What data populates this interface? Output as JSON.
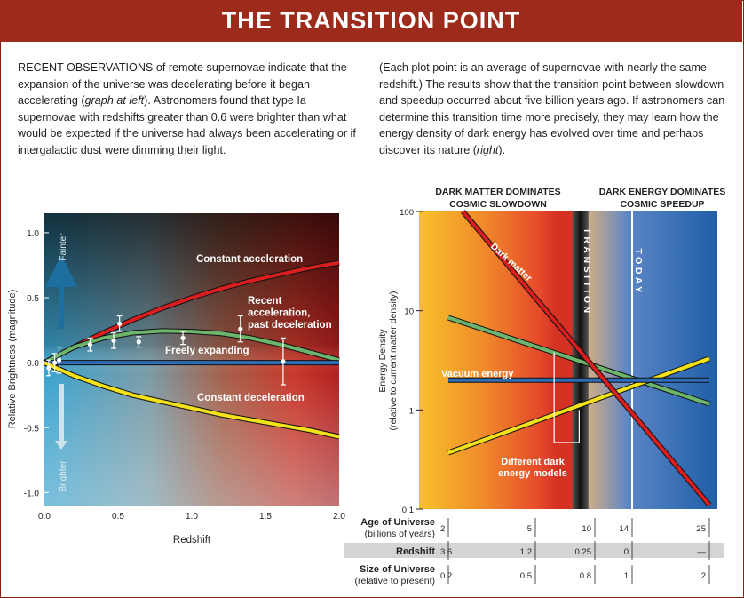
{
  "banner": {
    "title": "THE TRANSITION POINT"
  },
  "intro": {
    "left_lead": "RECENT OBSERVATIONS",
    "left_1": " of remote supernovae indicate that the expansion of the universe was decelerating before it began accelerating (",
    "left_italic_1": "graph at left",
    "left_2": "). Astronomers found that type Ia supernovae with redshifts greater than 0.6 were brighter than what would be expected if the universe had always been accelerating or if intergalactic dust were dimming their light.",
    "right_1": "(Each plot point is an average of supernovae with nearly the same redshift.) The results show that the transition point between slowdown and speedup occurred about five billion years ago. If astronomers can determine this transition time more precisely, they may learn how the energy density of dark energy has evolved over time and perhaps discover its nature (",
    "right_italic": "right",
    "right_2": ")."
  },
  "colors": {
    "banner": "#9c2b1c",
    "constant_acceleration": "#d81e1e",
    "recent_acceleration": "#6db56d",
    "freely_expanding": "#2e6db5",
    "constant_deceleration": "#f2e11b",
    "dark_matter": "#d81e1e",
    "dark_energy_models": "#6db56d",
    "vacuum_energy": "#2e6db5"
  },
  "chart_data": [
    {
      "type": "line",
      "xlabel": "Redshift",
      "ylabel": "Relative Brightness (magnitude)",
      "xlim": [
        0,
        2.0
      ],
      "ylim": [
        -1.1,
        1.15
      ],
      "x_ticks": [
        "0.0",
        "0.5",
        "1.0",
        "1.5",
        "2.0"
      ],
      "y_ticks": [
        "1.0",
        "0.5",
        "0.0",
        "-0.5",
        "-1.0"
      ],
      "arrow_labels": {
        "up": "Fainter",
        "down": "Brighter"
      },
      "series": [
        {
          "name": "Constant acceleration",
          "x": [
            0,
            0.2,
            0.4,
            0.6,
            0.8,
            1.0,
            1.2,
            1.4,
            1.6,
            1.8,
            2.0
          ],
          "values": [
            0,
            0.12,
            0.23,
            0.33,
            0.42,
            0.5,
            0.57,
            0.63,
            0.68,
            0.73,
            0.77
          ]
        },
        {
          "name": "Recent acceleration, past deceleration",
          "x": [
            0,
            0.2,
            0.4,
            0.6,
            0.8,
            1.0,
            1.2,
            1.4,
            1.6,
            1.8,
            2.0
          ],
          "values": [
            0,
            0.12,
            0.19,
            0.23,
            0.245,
            0.24,
            0.225,
            0.19,
            0.14,
            0.08,
            0.02
          ]
        },
        {
          "name": "Freely expanding",
          "x": [
            0,
            2.0
          ],
          "values": [
            0,
            0
          ]
        },
        {
          "name": "Constant deceleration",
          "x": [
            0,
            0.2,
            0.4,
            0.6,
            0.8,
            1.0,
            1.2,
            1.4,
            1.6,
            1.8,
            2.0
          ],
          "values": [
            0,
            -0.1,
            -0.18,
            -0.25,
            -0.3,
            -0.35,
            -0.4,
            -0.44,
            -0.48,
            -0.52,
            -0.57
          ]
        }
      ],
      "points": [
        {
          "x": 0.03,
          "y": -0.04,
          "err": 0.06
        },
        {
          "x": 0.07,
          "y": 0.0,
          "err": 0.07
        },
        {
          "x": 0.1,
          "y": 0.02,
          "err": 0.1
        },
        {
          "x": 0.31,
          "y": 0.14,
          "err": 0.05
        },
        {
          "x": 0.47,
          "y": 0.17,
          "err": 0.06
        },
        {
          "x": 0.51,
          "y": 0.3,
          "err": 0.06
        },
        {
          "x": 0.64,
          "y": 0.16,
          "err": 0.04
        },
        {
          "x": 0.94,
          "y": 0.19,
          "err": 0.05
        },
        {
          "x": 1.33,
          "y": 0.26,
          "err": 0.1
        },
        {
          "x": 1.62,
          "y": 0.01,
          "err": 0.18
        }
      ]
    },
    {
      "type": "line",
      "ylabel": "Energy Density (relative to current matter density)",
      "y_scale": "log",
      "ylim": [
        0.1,
        100
      ],
      "y_ticks": [
        "100",
        "10",
        "1",
        "0.1"
      ],
      "x_axis": "Redshift",
      "x": [
        3.6,
        1.2,
        0.25,
        0,
        -0.5
      ],
      "x_rows": [
        {
          "label": "Age of Universe",
          "sublabel": "(billions of years)",
          "values": [
            "2",
            "5",
            "10",
            "14",
            "25"
          ]
        },
        {
          "label": "Redshift",
          "values": [
            "3.6",
            "1.2",
            "0.25",
            "0",
            "—"
          ]
        },
        {
          "label": "Size of Universe",
          "sublabel": "(relative to present)",
          "values": [
            "0.2",
            "0.5",
            "0.8",
            "1",
            "2"
          ]
        }
      ],
      "series": [
        {
          "name": "Dark matter",
          "x": [
            3.2,
            -0.5
          ],
          "values": [
            100,
            0.11
          ]
        },
        {
          "name": "Vacuum energy",
          "x": [
            3.6,
            -0.5
          ],
          "values": [
            2.0,
            2.0
          ]
        },
        {
          "name": "",
          "x": [
            3.6,
            -0.5
          ],
          "values": [
            8.5,
            1.15
          ]
        },
        {
          "name": "",
          "x": [
            3.6,
            -0.5
          ],
          "values": [
            0.37,
            3.3
          ]
        }
      ],
      "annotations": {
        "left_era": [
          "DARK MATTER DOMINATES",
          "COSMIC SLOWDOWN"
        ],
        "right_era": [
          "DARK ENERGY DOMINATES",
          "COSMIC SPEEDUP"
        ],
        "transition": "TRANSITION",
        "today": "TODAY",
        "models": [
          "Different dark",
          "energy models"
        ],
        "dark_matter_label": "Dark matter",
        "vacuum_label": "Vacuum energy"
      }
    }
  ]
}
